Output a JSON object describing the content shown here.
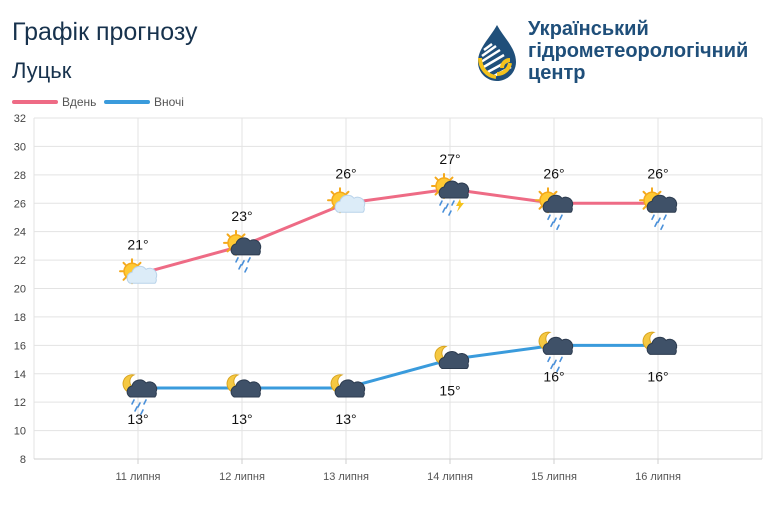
{
  "header": {
    "title": "Графік прогнозу",
    "city": "Луцьк",
    "org_lines": [
      "Український",
      "гідрометеорологічний",
      "центр"
    ]
  },
  "colors": {
    "day": "#ee6b85",
    "night": "#3a9bdc",
    "title": "#17324d",
    "org": "#1f4f7a"
  },
  "chart_data": {
    "type": "line",
    "categories": [
      "11 липня",
      "12 липня",
      "13 липня",
      "14 липня",
      "15 липня",
      "16 липня"
    ],
    "series": [
      {
        "name": "Вдень",
        "values": [
          21,
          23,
          26,
          27,
          26,
          26
        ],
        "labels": [
          "21°",
          "23°",
          "26°",
          "27°",
          "26°",
          "26°"
        ],
        "icons": [
          "sun-cloud",
          "sun-cloud-rain",
          "sun-cloud",
          "sun-cloud-storm",
          "sun-cloud-rain",
          "sun-cloud-rain"
        ]
      },
      {
        "name": "Вночі",
        "values": [
          13,
          13,
          13,
          15,
          16,
          16
        ],
        "labels": [
          "13°",
          "13°",
          "13°",
          "15°",
          "16°",
          "16°"
        ],
        "icons": [
          "moon-cloud-rain",
          "moon-cloud",
          "moon-cloud",
          "moon-cloud",
          "moon-cloud-rain",
          "moon-cloud"
        ]
      }
    ],
    "ylim": [
      8,
      32
    ],
    "yticks": [
      "8",
      "10",
      "12",
      "14",
      "16",
      "18",
      "20",
      "22",
      "24",
      "26",
      "28",
      "30",
      "32"
    ],
    "grid": true,
    "legend_position": "top-left"
  }
}
